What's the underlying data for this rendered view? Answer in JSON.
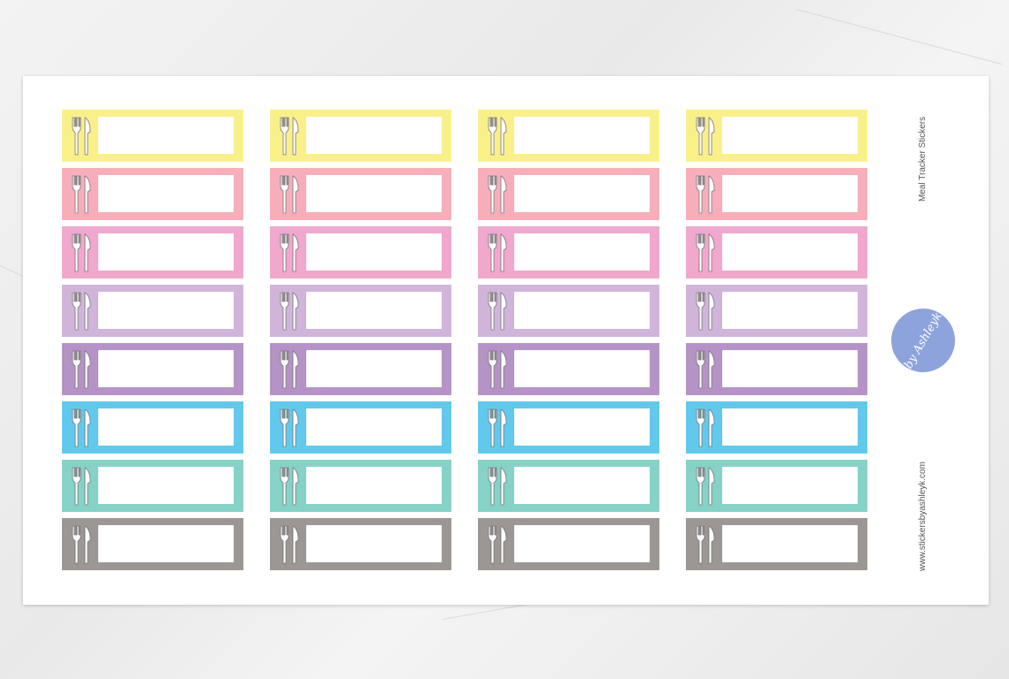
{
  "title": "Meal Tracker Stickers",
  "website": "www.stickersbyashleyk.com",
  "logo_text": "by Ashleyk",
  "icon": "fork-knife-icon",
  "columns": 4,
  "row_colors": [
    "#f9f08a",
    "#f7aebb",
    "#f0a8cc",
    "#d0b4d9",
    "#b593c6",
    "#62c9ec",
    "#86d2c6",
    "#9c9794"
  ]
}
